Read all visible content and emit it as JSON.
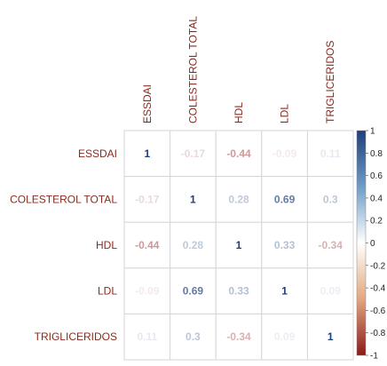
{
  "chart_data": {
    "type": "heatmap",
    "variables": [
      "ESSDAI",
      "COLESTEROL TOTAL",
      "HDL",
      "LDL",
      "TRIGLICERIDOS"
    ],
    "matrix": [
      [
        1,
        -0.17,
        -0.44,
        -0.09,
        0.11
      ],
      [
        -0.17,
        1,
        0.28,
        0.69,
        0.3
      ],
      [
        -0.44,
        0.28,
        1,
        0.33,
        -0.34
      ],
      [
        -0.09,
        0.69,
        0.33,
        1,
        0.09
      ],
      [
        0.11,
        0.3,
        -0.34,
        0.09,
        1
      ]
    ],
    "matrix_labels": [
      [
        "1",
        "-0.17",
        "-0.44",
        "-0.09",
        "0.11"
      ],
      [
        "-0.17",
        "1",
        "0.28",
        "0.69",
        "0.3"
      ],
      [
        "-0.44",
        "0.28",
        "1",
        "0.33",
        "-0.34"
      ],
      [
        "-0.09",
        "0.69",
        "0.33",
        "1",
        "0.09"
      ],
      [
        "0.11",
        "0.3",
        "-0.34",
        "0.09",
        "1"
      ]
    ],
    "colorbar": {
      "range": [
        -1,
        1
      ],
      "ticks": [
        "1",
        "0.8",
        "0.6",
        "0.4",
        "0.2",
        "0",
        "-0.2",
        "-0.4",
        "-0.6",
        "-0.8",
        "-1"
      ],
      "tick_values": [
        1,
        0.8,
        0.6,
        0.4,
        0.2,
        0,
        -0.2,
        -0.4,
        -0.6,
        -0.8,
        -1
      ],
      "negative_color": "#8b1a1a",
      "neutral_color": "#ffffff",
      "positive_color": "#1f3f7a"
    },
    "grid": true,
    "label_color": "#8b2a1c"
  }
}
